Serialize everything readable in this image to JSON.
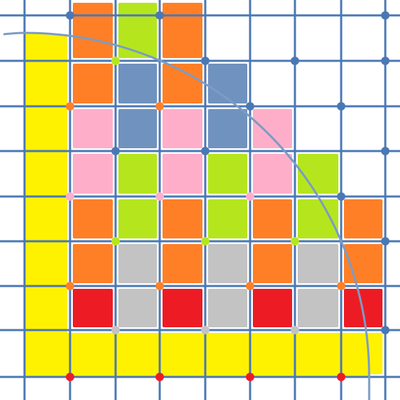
{
  "palette": {
    "Y": "#fff200",
    "O": "#ff7f27",
    "G": "#b5e61d",
    "B": "#7092be",
    "P": "#ffaec9",
    "S": "#c3c3c3",
    "R": "#ed1c24",
    "grid": "#4a78b5",
    "circle": "#7a9cc6"
  },
  "tiles": [
    {
      "row": 0,
      "col": 1,
      "color": "O"
    },
    {
      "row": 0,
      "col": 2,
      "color": "G"
    },
    {
      "row": 0,
      "col": 3,
      "color": "O"
    },
    {
      "row": 1,
      "col": 1,
      "color": "O"
    },
    {
      "row": 1,
      "col": 2,
      "color": "B"
    },
    {
      "row": 1,
      "col": 3,
      "color": "O"
    },
    {
      "row": 1,
      "col": 4,
      "color": "B"
    },
    {
      "row": 2,
      "col": 1,
      "color": "P"
    },
    {
      "row": 2,
      "col": 2,
      "color": "B"
    },
    {
      "row": 2,
      "col": 3,
      "color": "P"
    },
    {
      "row": 2,
      "col": 4,
      "color": "B"
    },
    {
      "row": 2,
      "col": 5,
      "color": "P"
    },
    {
      "row": 3,
      "col": 1,
      "color": "P"
    },
    {
      "row": 3,
      "col": 2,
      "color": "G"
    },
    {
      "row": 3,
      "col": 3,
      "color": "P"
    },
    {
      "row": 3,
      "col": 4,
      "color": "G"
    },
    {
      "row": 3,
      "col": 5,
      "color": "P"
    },
    {
      "row": 3,
      "col": 6,
      "color": "G"
    },
    {
      "row": 4,
      "col": 1,
      "color": "O"
    },
    {
      "row": 4,
      "col": 2,
      "color": "G"
    },
    {
      "row": 4,
      "col": 3,
      "color": "O"
    },
    {
      "row": 4,
      "col": 4,
      "color": "G"
    },
    {
      "row": 4,
      "col": 5,
      "color": "O"
    },
    {
      "row": 4,
      "col": 6,
      "color": "G"
    },
    {
      "row": 4,
      "col": 7,
      "color": "O"
    },
    {
      "row": 5,
      "col": 1,
      "color": "O"
    },
    {
      "row": 5,
      "col": 2,
      "color": "S"
    },
    {
      "row": 5,
      "col": 3,
      "color": "O"
    },
    {
      "row": 5,
      "col": 4,
      "color": "S"
    },
    {
      "row": 5,
      "col": 5,
      "color": "O"
    },
    {
      "row": 5,
      "col": 6,
      "color": "S"
    },
    {
      "row": 5,
      "col": 7,
      "color": "O"
    },
    {
      "row": 6,
      "col": 1,
      "color": "R"
    },
    {
      "row": 6,
      "col": 2,
      "color": "S"
    },
    {
      "row": 6,
      "col": 3,
      "color": "R"
    },
    {
      "row": 6,
      "col": 4,
      "color": "S"
    },
    {
      "row": 6,
      "col": 5,
      "color": "R"
    },
    {
      "row": 6,
      "col": 6,
      "color": "S"
    },
    {
      "row": 6,
      "col": 7,
      "color": "R"
    },
    {
      "row": 7,
      "col": 1,
      "color": "Y"
    },
    {
      "row": 7,
      "col": 2,
      "color": "Y"
    },
    {
      "row": 7,
      "col": 3,
      "color": "Y"
    },
    {
      "row": 7,
      "col": 4,
      "color": "Y"
    },
    {
      "row": 7,
      "col": 5,
      "color": "Y"
    },
    {
      "row": 7,
      "col": 6,
      "color": "Y"
    },
    {
      "row": 7,
      "col": 7,
      "color": "Y"
    }
  ],
  "dots": [
    {
      "row": 0,
      "col": 1,
      "color": "grid"
    },
    {
      "row": 0,
      "col": 3,
      "color": "grid"
    },
    {
      "row": 0,
      "col": 8,
      "color": "grid"
    },
    {
      "row": 1,
      "col": 2,
      "color": "G"
    },
    {
      "row": 1,
      "col": 4,
      "color": "grid"
    },
    {
      "row": 1,
      "col": 6,
      "color": "grid"
    },
    {
      "row": 1,
      "col": 8,
      "color": "grid"
    },
    {
      "row": 2,
      "col": 1,
      "color": "O"
    },
    {
      "row": 2,
      "col": 3,
      "color": "O"
    },
    {
      "row": 2,
      "col": 5,
      "color": "grid"
    },
    {
      "row": 2,
      "col": 7,
      "color": "grid"
    },
    {
      "row": 3,
      "col": 2,
      "color": "grid"
    },
    {
      "row": 3,
      "col": 4,
      "color": "grid"
    },
    {
      "row": 3,
      "col": 8,
      "color": "grid"
    },
    {
      "row": 4,
      "col": 1,
      "color": "P"
    },
    {
      "row": 4,
      "col": 3,
      "color": "P"
    },
    {
      "row": 4,
      "col": 5,
      "color": "P"
    },
    {
      "row": 4,
      "col": 7,
      "color": "grid"
    },
    {
      "row": 5,
      "col": 2,
      "color": "G"
    },
    {
      "row": 5,
      "col": 4,
      "color": "G"
    },
    {
      "row": 5,
      "col": 6,
      "color": "G"
    },
    {
      "row": 5,
      "col": 8,
      "color": "grid"
    },
    {
      "row": 6,
      "col": 1,
      "color": "O"
    },
    {
      "row": 6,
      "col": 3,
      "color": "O"
    },
    {
      "row": 6,
      "col": 5,
      "color": "O"
    },
    {
      "row": 6,
      "col": 7,
      "color": "O"
    },
    {
      "row": 7,
      "col": 2,
      "color": "S"
    },
    {
      "row": 7,
      "col": 4,
      "color": "S"
    },
    {
      "row": 7,
      "col": 6,
      "color": "S"
    },
    {
      "row": 7,
      "col": 8,
      "color": "grid"
    },
    {
      "row": 8,
      "col": 1,
      "color": "R"
    },
    {
      "row": 8,
      "col": 3,
      "color": "R"
    },
    {
      "row": 8,
      "col": 5,
      "color": "R"
    },
    {
      "row": 8,
      "col": 7,
      "color": "R"
    }
  ]
}
